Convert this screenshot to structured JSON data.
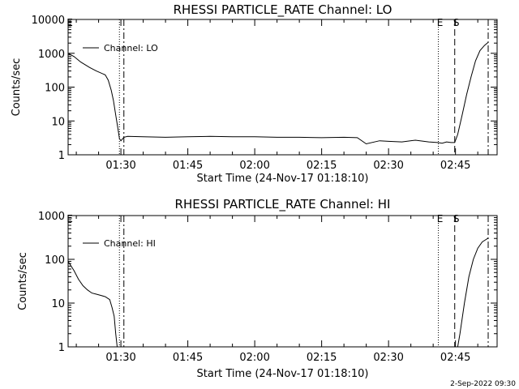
{
  "chart_data": [
    {
      "type": "line",
      "title": "RHESSI PARTICLE_RATE Channel: LO",
      "xlabel": "Start Time (24-Nov-17 01:18:10)",
      "ylabel": "Counts/sec",
      "scale_y": "log",
      "ylim": [
        1,
        10000
      ],
      "xlim": [
        "01:18:10",
        "02:54:20"
      ],
      "x_ticks": [
        "01:30",
        "01:45",
        "02:00",
        "02:15",
        "02:30",
        "02:45"
      ],
      "y_ticks": [
        "1",
        "10",
        "100",
        "1000",
        "10000"
      ],
      "legend": {
        "position": "top-left",
        "entries": [
          "Channel: LO"
        ]
      },
      "grid": false,
      "markers": [
        {
          "label": "E",
          "time": "01:18:10",
          "style": "dashed"
        },
        {
          "label": "",
          "time": "01:29:40",
          "style": "dotted"
        },
        {
          "label": "",
          "time": "01:30:40",
          "style": "dash-dot"
        },
        {
          "label": "E",
          "time": "02:41:10",
          "style": "dotted"
        },
        {
          "label": "S",
          "time": "02:44:50",
          "style": "dashed"
        },
        {
          "label": "",
          "time": "02:52:20",
          "style": "dash-dot"
        }
      ],
      "series": [
        {
          "name": "Channel: LO",
          "x": [
            "01:18:10",
            "01:19:30",
            "01:21:00",
            "01:23:00",
            "01:24:30",
            "01:26:30",
            "01:27:10",
            "01:27:50",
            "01:28:20",
            "01:28:50",
            "01:29:20",
            "01:29:40",
            "01:30:00",
            "01:30:40",
            "01:31:30",
            "01:35:00",
            "01:40:00",
            "01:45:00",
            "01:50:00",
            "01:55:00",
            "02:00:00",
            "02:05:00",
            "02:10:00",
            "02:15:00",
            "02:20:00",
            "02:23:00",
            "02:25:00",
            "02:28:00",
            "02:30:00",
            "02:33:00",
            "02:36:00",
            "02:39:00",
            "02:41:00",
            "02:42:00",
            "02:43:00",
            "02:44:00",
            "02:44:50",
            "02:45:30",
            "02:46:30",
            "02:47:30",
            "02:48:30",
            "02:49:30",
            "02:50:30",
            "02:51:30",
            "02:52:20"
          ],
          "values": [
            1000,
            800,
            550,
            380,
            300,
            230,
            160,
            80,
            40,
            15,
            6,
            3,
            2.6,
            3.3,
            3.5,
            3.4,
            3.3,
            3.4,
            3.5,
            3.4,
            3.4,
            3.3,
            3.3,
            3.2,
            3.3,
            3.2,
            2.1,
            2.6,
            2.5,
            2.4,
            2.7,
            2.4,
            2.3,
            2.2,
            2.4,
            2.3,
            2.3,
            4,
            15,
            60,
            200,
            600,
            1200,
            1700,
            2100
          ]
        }
      ]
    },
    {
      "type": "line",
      "title": "RHESSI PARTICLE_RATE Channel: HI",
      "xlabel": "Start Time (24-Nov-17 01:18:10)",
      "ylabel": "Counts/sec",
      "scale_y": "log",
      "ylim": [
        1,
        1000
      ],
      "xlim": [
        "01:18:10",
        "02:54:20"
      ],
      "x_ticks": [
        "01:30",
        "01:45",
        "02:00",
        "02:15",
        "02:30",
        "02:45"
      ],
      "y_ticks": [
        "1",
        "10",
        "100",
        "1000"
      ],
      "legend": {
        "position": "top-left",
        "entries": [
          "Channel: HI"
        ]
      },
      "grid": false,
      "markers": [
        {
          "label": "E",
          "time": "01:18:10",
          "style": "dashed"
        },
        {
          "label": "",
          "time": "01:29:40",
          "style": "dotted"
        },
        {
          "label": "",
          "time": "01:30:40",
          "style": "dash-dot"
        },
        {
          "label": "E",
          "time": "02:41:10",
          "style": "dotted"
        },
        {
          "label": "S",
          "time": "02:44:50",
          "style": "dashed"
        },
        {
          "label": "",
          "time": "02:52:20",
          "style": "dash-dot"
        }
      ],
      "series": [
        {
          "name": "Channel: HI",
          "x": [
            "01:18:10",
            "01:19:30",
            "01:20:30",
            "01:21:30",
            "01:22:30",
            "01:23:30",
            "01:24:30",
            "01:25:30",
            "01:26:30",
            "01:27:30",
            "01:28:00",
            "01:28:30",
            "01:28:50",
            "01:29:10"
          ],
          "values": [
            90,
            55,
            35,
            25,
            20,
            17,
            16,
            15,
            14,
            12,
            8,
            5,
            2,
            1
          ],
          "x2": [
            "02:45:30",
            "02:46:00",
            "02:47:00",
            "02:48:00",
            "02:49:00",
            "02:50:00",
            "02:51:00",
            "02:52:00",
            "02:52:20"
          ],
          "values2": [
            1,
            2,
            10,
            40,
            100,
            180,
            250,
            290,
            310
          ]
        }
      ]
    }
  ],
  "footer": {
    "timestamp": "2-Sep-2022 09:30"
  }
}
